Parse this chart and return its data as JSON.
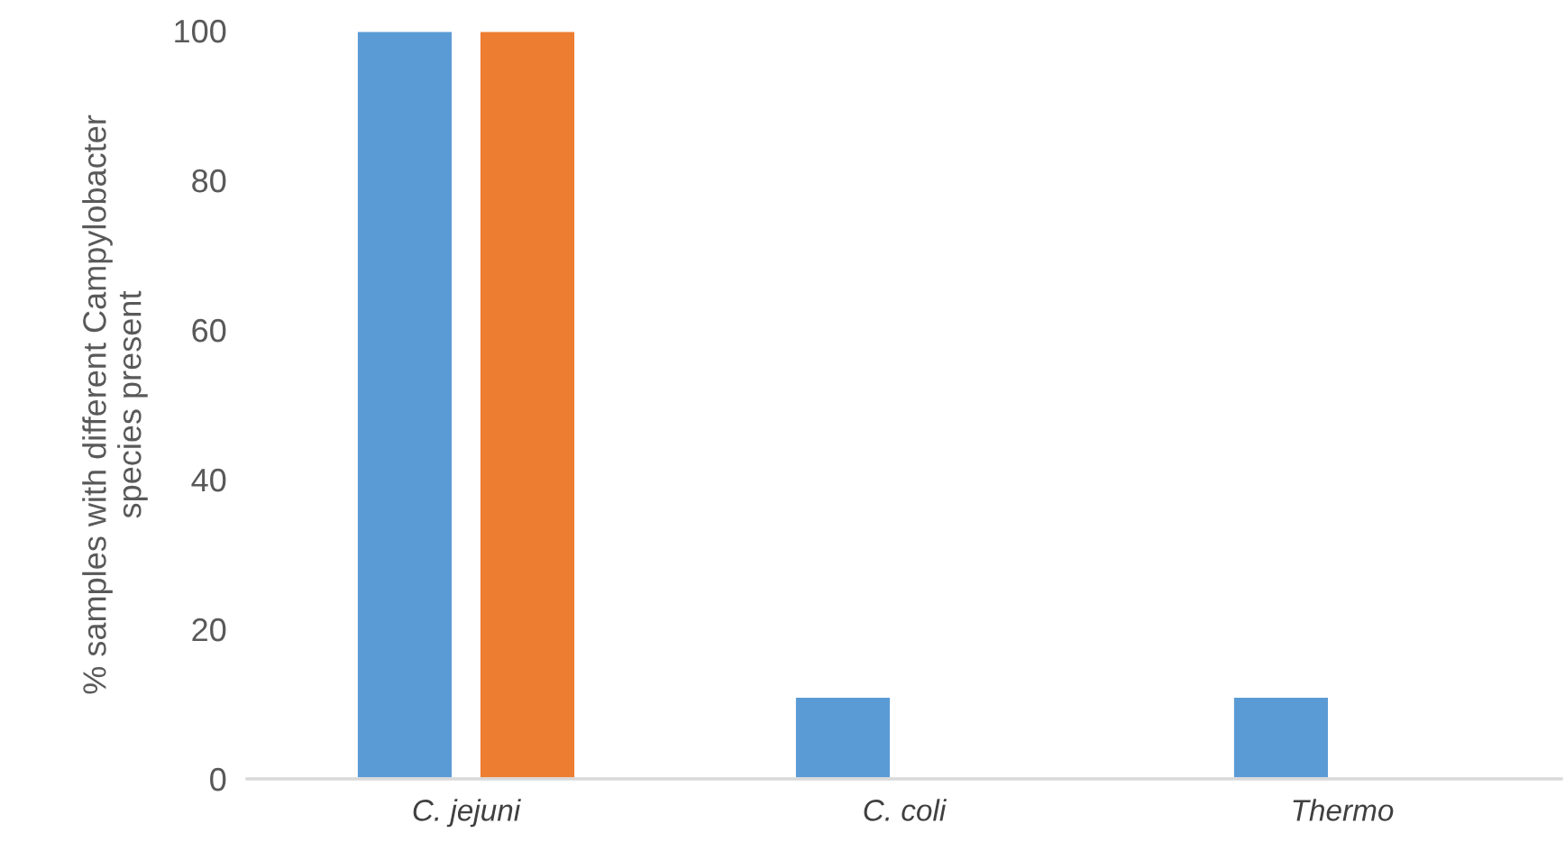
{
  "chart_data": {
    "type": "bar",
    "ylabel": "% samples with different Campylobacter species present",
    "categories": [
      "C. jejuni",
      "C. coli",
      "Thermo"
    ],
    "series": [
      {
        "color": "#5b9bd5",
        "values": [
          100,
          11,
          11
        ]
      },
      {
        "color": "#ed7d31",
        "values": [
          100,
          null,
          null
        ]
      }
    ],
    "ylim": [
      0,
      100
    ],
    "yticks": [
      0,
      20,
      40,
      60,
      80,
      100
    ],
    "grid": false
  }
}
